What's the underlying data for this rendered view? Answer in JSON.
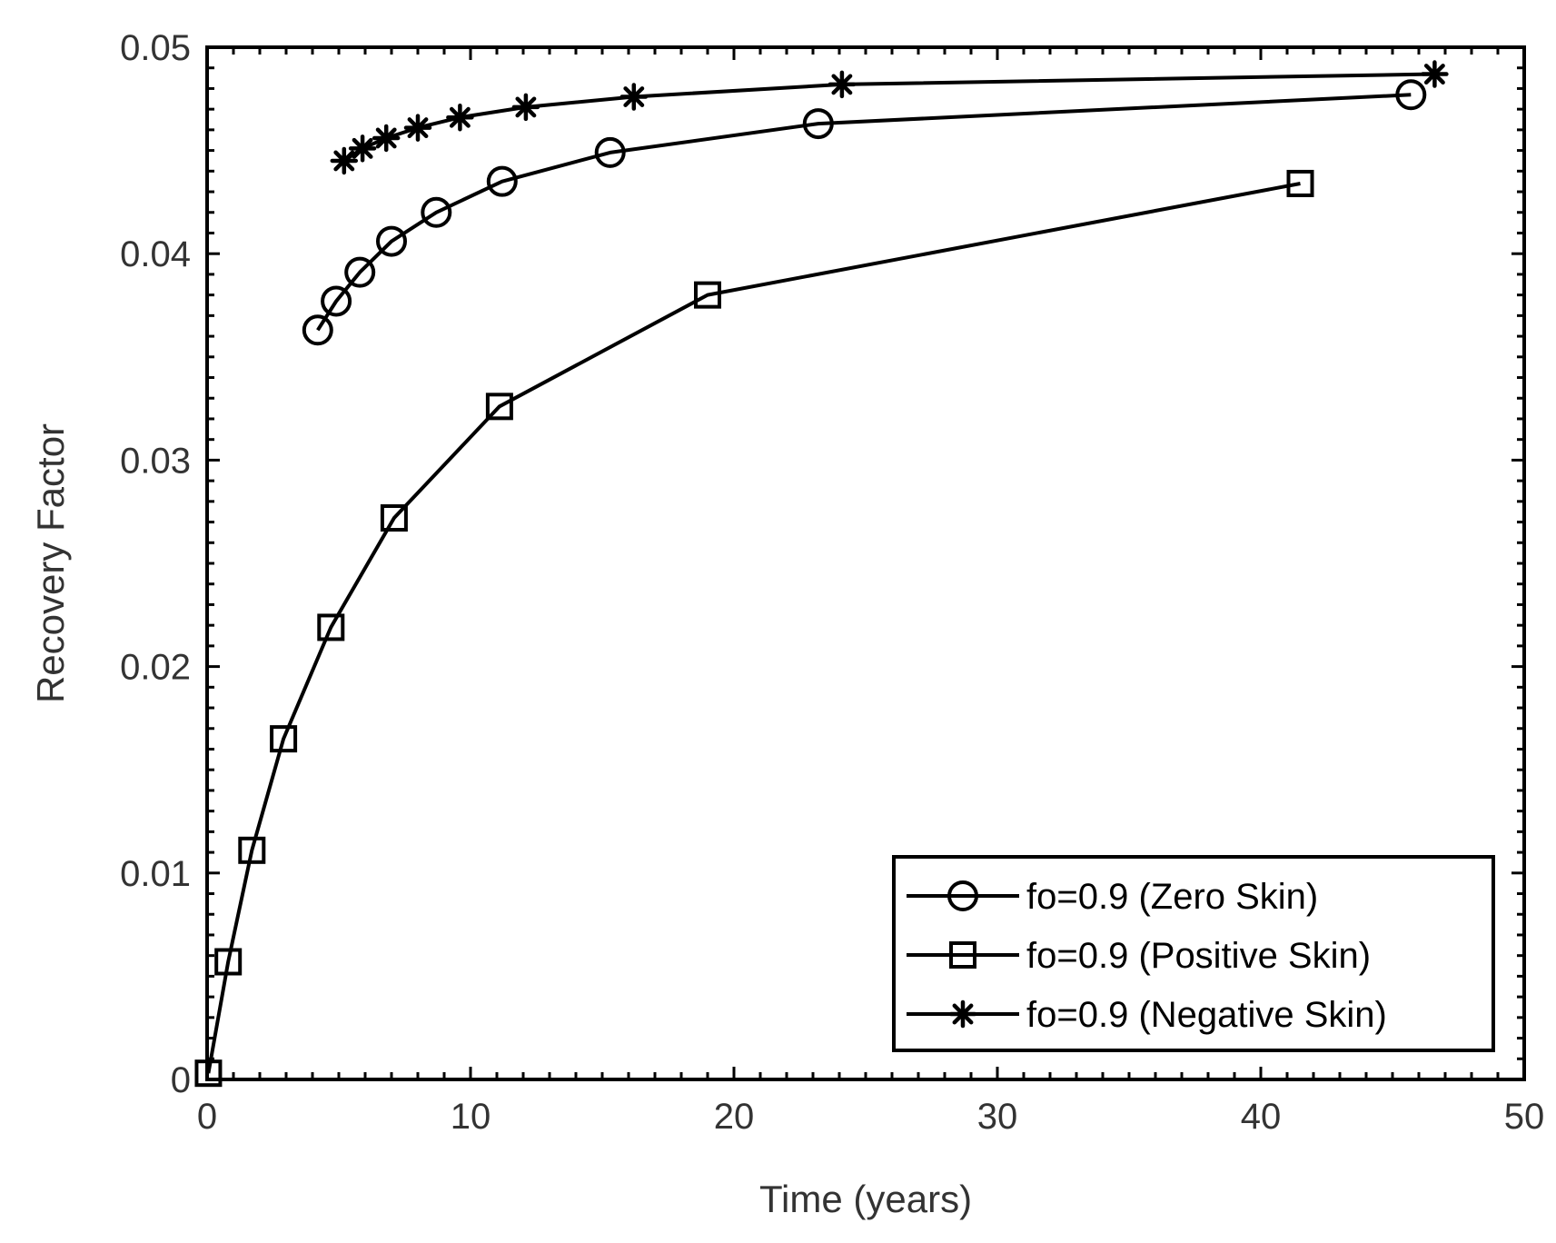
{
  "chart_data": {
    "type": "line",
    "title": "",
    "xlabel": "Time (years)",
    "ylabel": "Recovery Factor",
    "xlim": [
      0,
      50
    ],
    "ylim": [
      0,
      0.05
    ],
    "x_ticks": [
      0,
      10,
      20,
      30,
      40,
      50
    ],
    "x_tick_labels": [
      "0",
      "10",
      "20",
      "30",
      "40",
      "50"
    ],
    "y_ticks": [
      0,
      0.01,
      0.02,
      0.03,
      0.04,
      0.05
    ],
    "y_tick_labels": [
      "0",
      "0.01",
      "0.02",
      "0.03",
      "0.04",
      "0.05"
    ],
    "x_minor_step": 1,
    "y_minor_step": 0.001,
    "grid": false,
    "legend_position": "bottom-right",
    "colors": {
      "line": "#000000",
      "axis": "#000000",
      "text": "#333333",
      "background": "#ffffff"
    },
    "series": [
      {
        "name": "fo=0.9 (Zero Skin)",
        "marker": "circle",
        "x": [
          4.2,
          4.9,
          5.8,
          7.0,
          8.7,
          11.2,
          15.3,
          23.2,
          45.7
        ],
        "y": [
          0.0363,
          0.0377,
          0.0391,
          0.0406,
          0.042,
          0.0435,
          0.0449,
          0.0463,
          0.0477
        ]
      },
      {
        "name": "fo=0.9 (Positive Skin)",
        "marker": "square",
        "x": [
          0.05,
          0.8,
          1.7,
          2.9,
          4.7,
          7.1,
          11.1,
          19.0,
          41.5
        ],
        "y": [
          0.0003,
          0.0057,
          0.0111,
          0.0165,
          0.0219,
          0.0272,
          0.0326,
          0.038,
          0.0434
        ]
      },
      {
        "name": "fo=0.9 (Negative Skin)",
        "marker": "star",
        "x": [
          5.2,
          5.9,
          6.8,
          8.0,
          9.6,
          12.1,
          16.2,
          24.1,
          46.6
        ],
        "y": [
          0.0445,
          0.0451,
          0.0456,
          0.0461,
          0.0466,
          0.0471,
          0.0476,
          0.0482,
          0.0487
        ]
      }
    ]
  }
}
